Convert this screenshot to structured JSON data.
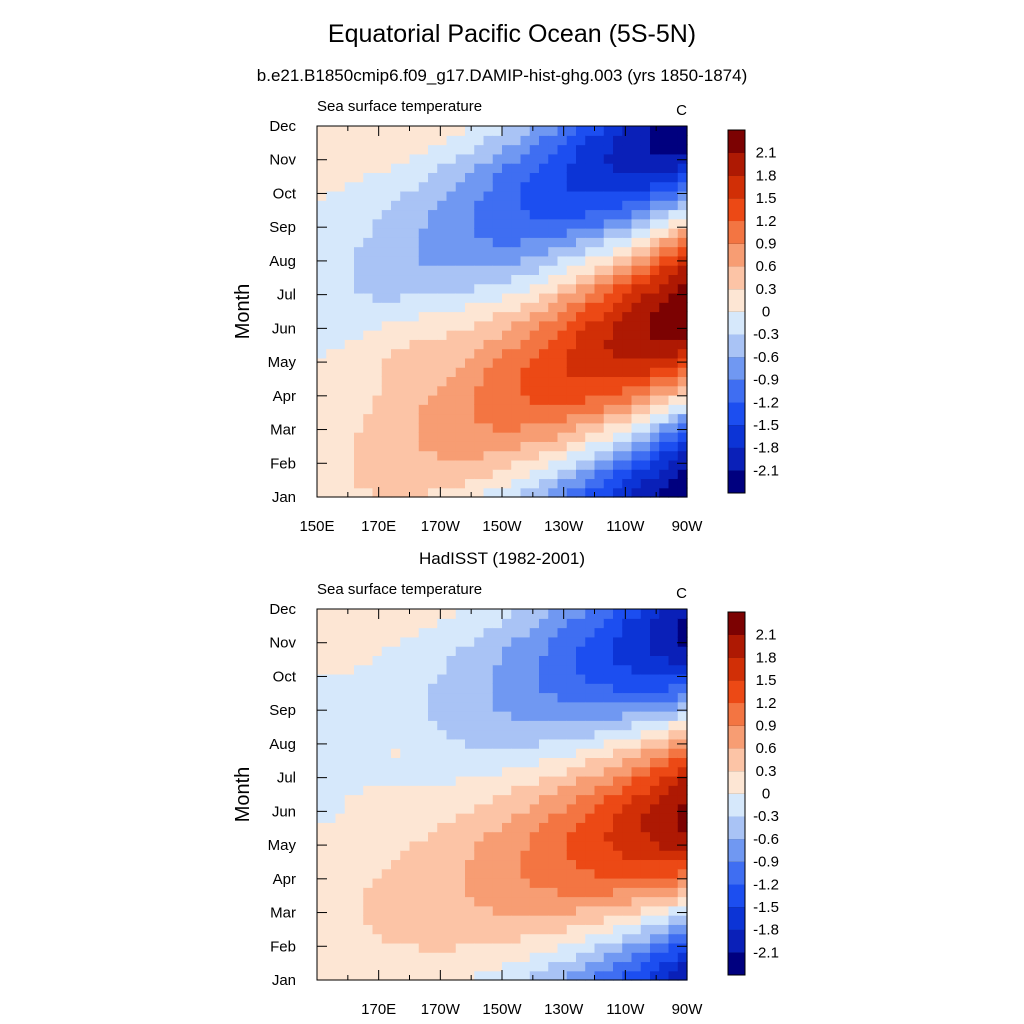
{
  "title": "Equatorial Pacific Ocean (5S-5N)",
  "subtitle": "b.e21.B1850cmip6.f09_g17.DAMIP-hist-ghg.003 (yrs 1850-1874)",
  "chart_data": [
    {
      "type": "heatmap",
      "title": "",
      "left_label": "Sea surface temperature",
      "right_label": "C",
      "ylabel": "Month",
      "xlabel": "",
      "x_ticks": [
        "150E",
        "170E",
        "170W",
        "150W",
        "130W",
        "110W",
        "90W"
      ],
      "y_ticks": [
        "Jan",
        "Feb",
        "Mar",
        "Apr",
        "May",
        "Jun",
        "Jul",
        "Aug",
        "Sep",
        "Oct",
        "Nov",
        "Dec"
      ],
      "x_range": [
        150,
        270
      ],
      "colorbar_labels": [
        "2.1",
        "1.8",
        "1.5",
        "1.2",
        "0.9",
        "0.6",
        "0.3",
        "0",
        "-0.3",
        "-0.6",
        "-0.9",
        "-1.2",
        "-1.5",
        "-1.8",
        "-2.1"
      ]
    },
    {
      "type": "heatmap",
      "title": "HadISST (1982-2001)",
      "left_label": "Sea surface temperature",
      "right_label": "C",
      "ylabel": "Month",
      "xlabel": "",
      "x_ticks": [
        "170E",
        "170W",
        "150W",
        "130W",
        "110W",
        "90W"
      ],
      "y_ticks": [
        "Jan",
        "Feb",
        "Mar",
        "Apr",
        "May",
        "Jun",
        "Jul",
        "Aug",
        "Sep",
        "Oct",
        "Nov",
        "Dec"
      ],
      "x_range": [
        150,
        270
      ],
      "colorbar_labels": [
        "2.1",
        "1.8",
        "1.5",
        "1.2",
        "0.9",
        "0.6",
        "0.3",
        "0",
        "-0.3",
        "-0.6",
        "-0.9",
        "-1.2",
        "-1.5",
        "-1.8",
        "-2.1"
      ]
    }
  ],
  "colors": {
    "levels": [
      "#00007f",
      "#0a20b8",
      "#0c34d6",
      "#1c4ef0",
      "#3f6ef2",
      "#7098f2",
      "#a9c3f5",
      "#d6e8fb",
      "#fde6d4",
      "#fcc4a6",
      "#f79d73",
      "#f37542",
      "#ec4915",
      "#d12f06",
      "#ae1903",
      "#7c0202"
    ]
  }
}
